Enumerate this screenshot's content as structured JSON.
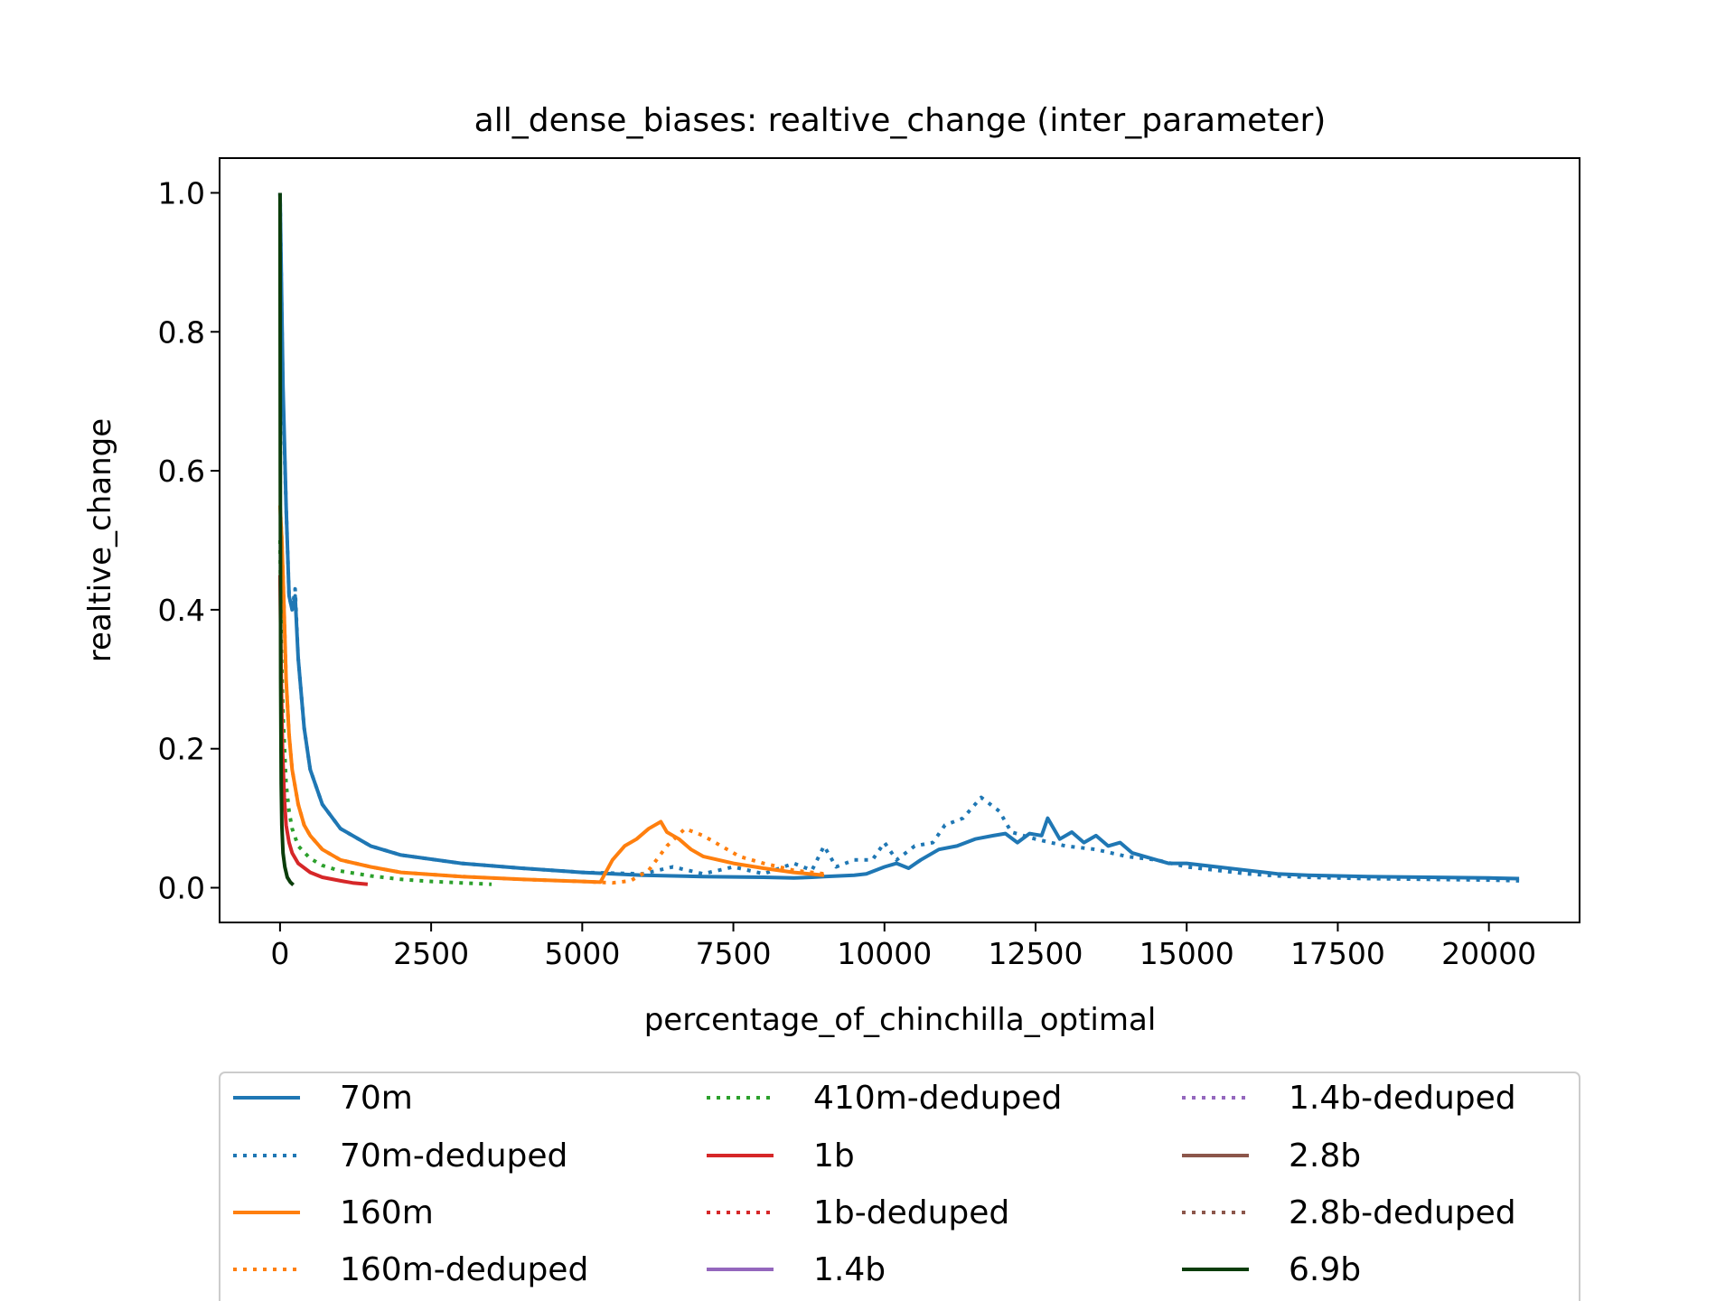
{
  "chart_data": {
    "type": "line",
    "title": "all_dense_biases: realtive_change (inter_parameter)",
    "xlabel": "percentage_of_chinchilla_optimal",
    "ylabel": "realtive_change",
    "xlim": [
      -1000,
      21500
    ],
    "ylim": [
      -0.05,
      1.05
    ],
    "xticks": [
      0,
      2500,
      5000,
      7500,
      10000,
      12500,
      15000,
      17500,
      20000
    ],
    "yticks": [
      "0.0",
      "0.2",
      "0.4",
      "0.6",
      "0.8",
      "1.0"
    ],
    "grid": false,
    "legend_position": "below-plot",
    "series": [
      {
        "name": "70m",
        "color": "#1f77b4",
        "style": "solid",
        "x": [
          0,
          50,
          100,
          150,
          200,
          250,
          300,
          400,
          500,
          700,
          1000,
          1500,
          2000,
          3000,
          4000,
          5000,
          6000,
          7000,
          8000,
          8500,
          8800,
          9000,
          9500,
          9700,
          10000,
          10200,
          10400,
          10600,
          10900,
          11200,
          11500,
          11800,
          12000,
          12200,
          12400,
          12600,
          12700,
          12900,
          13100,
          13300,
          13500,
          13700,
          13900,
          14100,
          14300,
          14500,
          14700,
          15000,
          15500,
          16000,
          16500,
          17000,
          17500,
          18000,
          19000,
          20000,
          20500
        ],
        "y": [
          1.0,
          0.72,
          0.55,
          0.42,
          0.4,
          0.42,
          0.33,
          0.23,
          0.17,
          0.12,
          0.085,
          0.06,
          0.047,
          0.035,
          0.028,
          0.022,
          0.018,
          0.016,
          0.015,
          0.014,
          0.015,
          0.016,
          0.018,
          0.02,
          0.03,
          0.035,
          0.028,
          0.04,
          0.055,
          0.06,
          0.07,
          0.075,
          0.078,
          0.065,
          0.078,
          0.075,
          0.1,
          0.07,
          0.08,
          0.065,
          0.075,
          0.06,
          0.065,
          0.05,
          0.045,
          0.04,
          0.035,
          0.035,
          0.03,
          0.025,
          0.02,
          0.018,
          0.017,
          0.016,
          0.015,
          0.014,
          0.013
        ]
      },
      {
        "name": "70m-deduped",
        "color": "#1f77b4",
        "style": "dotted",
        "x": [
          0,
          50,
          100,
          150,
          200,
          250,
          300,
          400,
          500,
          700,
          1000,
          1500,
          2000,
          3000,
          4000,
          5000,
          6000,
          6500,
          7000,
          7500,
          8000,
          8500,
          8800,
          9000,
          9200,
          9500,
          9800,
          10000,
          10200,
          10500,
          10800,
          11000,
          11300,
          11600,
          11900,
          12100,
          12500,
          13000,
          13500,
          14000,
          14500,
          15000,
          15500,
          16000,
          16500,
          17000,
          18000,
          19000,
          20000,
          20500
        ],
        "y": [
          1.0,
          0.7,
          0.55,
          0.42,
          0.4,
          0.43,
          0.33,
          0.23,
          0.17,
          0.12,
          0.085,
          0.06,
          0.047,
          0.035,
          0.028,
          0.022,
          0.02,
          0.03,
          0.02,
          0.03,
          0.02,
          0.035,
          0.025,
          0.06,
          0.03,
          0.04,
          0.04,
          0.065,
          0.04,
          0.06,
          0.065,
          0.09,
          0.1,
          0.13,
          0.11,
          0.08,
          0.07,
          0.06,
          0.055,
          0.045,
          0.04,
          0.03,
          0.025,
          0.02,
          0.017,
          0.015,
          0.013,
          0.012,
          0.011,
          0.01
        ]
      },
      {
        "name": "160m",
        "color": "#ff7f0e",
        "style": "solid",
        "x": [
          0,
          30,
          60,
          100,
          150,
          200,
          300,
          400,
          500,
          700,
          1000,
          1500,
          2000,
          3000,
          4000,
          5000,
          5300,
          5500,
          5700,
          5900,
          6100,
          6300,
          6400,
          6600,
          6800,
          7000,
          7500,
          8000,
          8500,
          9000
        ],
        "y": [
          0.55,
          0.5,
          0.42,
          0.3,
          0.22,
          0.17,
          0.12,
          0.09,
          0.075,
          0.055,
          0.04,
          0.03,
          0.022,
          0.016,
          0.012,
          0.009,
          0.008,
          0.04,
          0.06,
          0.07,
          0.085,
          0.095,
          0.08,
          0.07,
          0.055,
          0.045,
          0.035,
          0.028,
          0.022,
          0.018
        ]
      },
      {
        "name": "160m-deduped",
        "color": "#ff7f0e",
        "style": "dotted",
        "x": [
          0,
          30,
          60,
          100,
          150,
          200,
          300,
          400,
          500,
          700,
          1000,
          1500,
          2000,
          3000,
          4000,
          5000,
          5500,
          5800,
          6100,
          6400,
          6700,
          7000,
          7300,
          7600,
          8000,
          8500,
          9000
        ],
        "y": [
          0.55,
          0.5,
          0.42,
          0.3,
          0.22,
          0.17,
          0.12,
          0.09,
          0.075,
          0.055,
          0.04,
          0.03,
          0.022,
          0.016,
          0.012,
          0.009,
          0.007,
          0.01,
          0.025,
          0.06,
          0.085,
          0.075,
          0.06,
          0.045,
          0.035,
          0.025,
          0.02
        ]
      },
      {
        "name": "410m-deduped",
        "color": "#2ca02c",
        "style": "dotted",
        "x": [
          0,
          20,
          50,
          100,
          150,
          200,
          300,
          500,
          700,
          1000,
          1500,
          2000,
          2500,
          3000,
          3500
        ],
        "y": [
          0.5,
          0.35,
          0.25,
          0.15,
          0.11,
          0.085,
          0.06,
          0.042,
          0.032,
          0.024,
          0.017,
          0.012,
          0.009,
          0.007,
          0.005
        ]
      },
      {
        "name": "1b",
        "color": "#d62728",
        "style": "solid",
        "x": [
          0,
          20,
          40,
          70,
          100,
          150,
          200,
          300,
          500,
          700,
          1000,
          1200,
          1450
        ],
        "y": [
          0.45,
          0.3,
          0.2,
          0.13,
          0.09,
          0.065,
          0.05,
          0.035,
          0.022,
          0.015,
          0.01,
          0.007,
          0.005
        ]
      },
      {
        "name": "1b-deduped",
        "color": "#d62728",
        "style": "dotted",
        "x": [],
        "y": []
      },
      {
        "name": "1.4b",
        "color": "#9467bd",
        "style": "solid",
        "x": [],
        "y": []
      },
      {
        "name": "1.4b-deduped",
        "color": "#9467bd",
        "style": "dotted",
        "x": [],
        "y": []
      },
      {
        "name": "2.8b",
        "color": "#8c564b",
        "style": "solid",
        "x": [],
        "y": []
      },
      {
        "name": "2.8b-deduped",
        "color": "#8c564b",
        "style": "dotted",
        "x": [],
        "y": []
      },
      {
        "name": "6.9b",
        "color": "#0b3d0b",
        "style": "solid",
        "x": [
          0,
          5,
          10,
          20,
          30,
          50,
          80,
          120,
          170,
          220
        ],
        "y": [
          1.0,
          0.6,
          0.3,
          0.15,
          0.09,
          0.05,
          0.03,
          0.015,
          0.008,
          0.004
        ]
      }
    ]
  }
}
